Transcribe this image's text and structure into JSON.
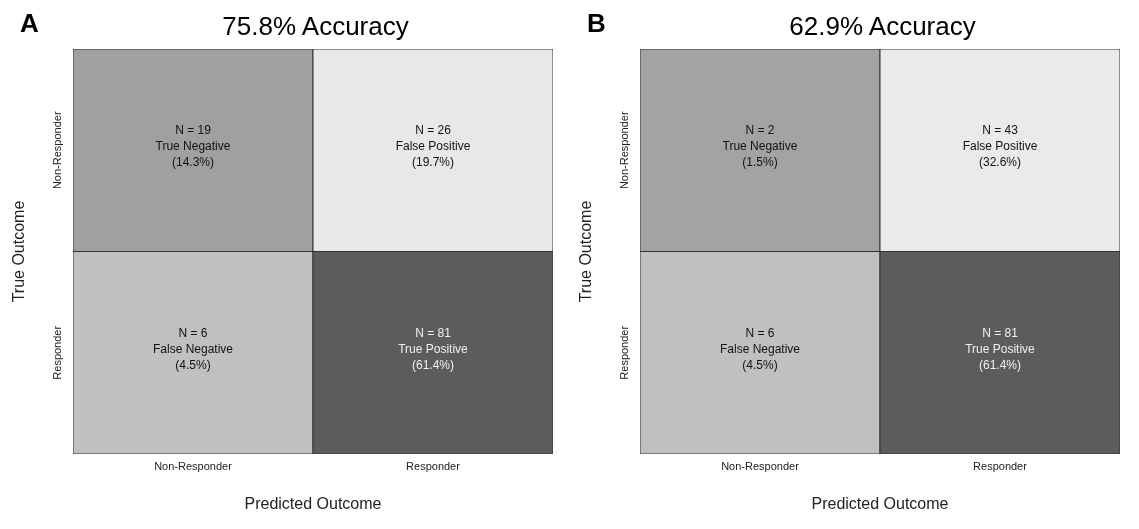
{
  "chart_data": [
    {
      "type": "heatmap",
      "title": "75.8% Accuracy",
      "xlabel": "Predicted Outcome",
      "ylabel": "True Outcome",
      "categories": [
        "Non-Responder",
        "Responder"
      ],
      "y_categories": [
        "Non-Responder",
        "Responder"
      ],
      "cells": [
        [
          19,
          26
        ],
        [
          6,
          81
        ]
      ],
      "cell_labels": [
        [
          "N = 19",
          "N = 26"
        ],
        [
          "N = 6",
          "N = 81"
        ]
      ],
      "annotations": [
        "A",
        "True Negative\n(14.3%)",
        "False Positive\n(19.7%)",
        "False Negative\n(4.5%)",
        "True Positive\n(61.4%)"
      ],
      "colors": [
        "#a0a0a0",
        "#e8e8e8",
        "#c0c0c0",
        "#5c5c5c"
      ]
    },
    {
      "type": "heatmap",
      "title": "62.9% Accuracy",
      "xlabel": "Predicted Outcome",
      "ylabel": "True Outcome",
      "categories": [
        "Non-Responder",
        "Responder"
      ],
      "y_categories": [
        "Non-Responder",
        "Responder"
      ],
      "cells": [
        [
          2,
          43
        ],
        [
          6,
          81
        ]
      ],
      "cell_labels": [
        [
          "N = 2",
          "N = 43"
        ],
        [
          "N = 6",
          "N = 81"
        ]
      ],
      "annotations": [
        "B",
        "True Negative\n(1.5%)",
        "False Positive\n(32.6%)",
        "False Negative\n(4.5%)",
        "True Positive\n(61.4%)"
      ],
      "colors": [
        "#a3a3a3",
        "#eaeaea",
        "#c0c0c0",
        "#5c5c5c"
      ]
    }
  ]
}
